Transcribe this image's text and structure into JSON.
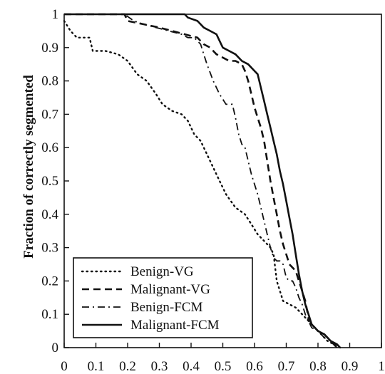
{
  "chart_data": {
    "type": "line",
    "title": "",
    "xlabel": "",
    "ylabel": "Fraction of correctly segmented",
    "xlim": [
      0,
      1
    ],
    "ylim": [
      0,
      1
    ],
    "x_ticks": [
      "0",
      "0.1",
      "0.2",
      "0.3",
      "0.4",
      "0.5",
      "0.6",
      "0.7",
      "0.8",
      "0.9",
      "1"
    ],
    "y_ticks": [
      "0",
      "0.1",
      "0.2",
      "0.3",
      "0.4",
      "0.5",
      "0.6",
      "0.7",
      "0.8",
      "0.9",
      "1"
    ],
    "grid": false,
    "legend_position": "bottom-left",
    "series": [
      {
        "name": "Benign-VG",
        "style": "dotted",
        "color": "#111111",
        "points": [
          [
            0.0,
            0.98
          ],
          [
            0.02,
            0.95
          ],
          [
            0.04,
            0.93
          ],
          [
            0.08,
            0.93
          ],
          [
            0.09,
            0.89
          ],
          [
            0.13,
            0.89
          ],
          [
            0.17,
            0.88
          ],
          [
            0.2,
            0.86
          ],
          [
            0.23,
            0.82
          ],
          [
            0.26,
            0.8
          ],
          [
            0.29,
            0.76
          ],
          [
            0.31,
            0.73
          ],
          [
            0.34,
            0.71
          ],
          [
            0.37,
            0.7
          ],
          [
            0.39,
            0.68
          ],
          [
            0.41,
            0.64
          ],
          [
            0.43,
            0.62
          ],
          [
            0.45,
            0.58
          ],
          [
            0.47,
            0.54
          ],
          [
            0.49,
            0.5
          ],
          [
            0.51,
            0.46
          ],
          [
            0.54,
            0.42
          ],
          [
            0.57,
            0.4
          ],
          [
            0.59,
            0.37
          ],
          [
            0.61,
            0.34
          ],
          [
            0.63,
            0.32
          ],
          [
            0.65,
            0.3
          ],
          [
            0.66,
            0.28
          ],
          [
            0.67,
            0.2
          ],
          [
            0.68,
            0.17
          ],
          [
            0.69,
            0.14
          ],
          [
            0.71,
            0.13
          ],
          [
            0.73,
            0.12
          ],
          [
            0.75,
            0.1
          ],
          [
            0.77,
            0.08
          ],
          [
            0.79,
            0.06
          ],
          [
            0.81,
            0.04
          ],
          [
            0.83,
            0.02
          ],
          [
            0.85,
            0.01
          ],
          [
            0.87,
            0.0
          ]
        ]
      },
      {
        "name": "Malignant-VG",
        "style": "dashed",
        "color": "#111111",
        "points": [
          [
            0.0,
            1.0
          ],
          [
            0.19,
            1.0
          ],
          [
            0.2,
            0.98
          ],
          [
            0.25,
            0.97
          ],
          [
            0.3,
            0.96
          ],
          [
            0.34,
            0.95
          ],
          [
            0.38,
            0.94
          ],
          [
            0.42,
            0.93
          ],
          [
            0.44,
            0.91
          ],
          [
            0.46,
            0.9
          ],
          [
            0.48,
            0.88
          ],
          [
            0.5,
            0.87
          ],
          [
            0.52,
            0.86
          ],
          [
            0.54,
            0.86
          ],
          [
            0.56,
            0.85
          ],
          [
            0.57,
            0.83
          ],
          [
            0.58,
            0.8
          ],
          [
            0.59,
            0.76
          ],
          [
            0.6,
            0.72
          ],
          [
            0.61,
            0.69
          ],
          [
            0.62,
            0.66
          ],
          [
            0.63,
            0.62
          ],
          [
            0.64,
            0.56
          ],
          [
            0.65,
            0.5
          ],
          [
            0.66,
            0.45
          ],
          [
            0.67,
            0.4
          ],
          [
            0.68,
            0.35
          ],
          [
            0.69,
            0.31
          ],
          [
            0.7,
            0.28
          ],
          [
            0.71,
            0.25
          ],
          [
            0.72,
            0.24
          ],
          [
            0.73,
            0.23
          ],
          [
            0.74,
            0.2
          ],
          [
            0.75,
            0.17
          ],
          [
            0.76,
            0.14
          ],
          [
            0.77,
            0.09
          ],
          [
            0.78,
            0.07
          ],
          [
            0.8,
            0.05
          ],
          [
            0.82,
            0.04
          ],
          [
            0.84,
            0.02
          ],
          [
            0.86,
            0.0
          ]
        ]
      },
      {
        "name": "Benign-FCM",
        "style": "dashdot",
        "color": "#111111",
        "points": [
          [
            0.0,
            1.0
          ],
          [
            0.19,
            1.0
          ],
          [
            0.22,
            0.98
          ],
          [
            0.25,
            0.97
          ],
          [
            0.29,
            0.96
          ],
          [
            0.33,
            0.95
          ],
          [
            0.37,
            0.94
          ],
          [
            0.39,
            0.93
          ],
          [
            0.41,
            0.93
          ],
          [
            0.43,
            0.91
          ],
          [
            0.44,
            0.88
          ],
          [
            0.45,
            0.85
          ],
          [
            0.47,
            0.8
          ],
          [
            0.49,
            0.76
          ],
          [
            0.51,
            0.73
          ],
          [
            0.53,
            0.73
          ],
          [
            0.54,
            0.69
          ],
          [
            0.55,
            0.64
          ],
          [
            0.56,
            0.61
          ],
          [
            0.57,
            0.6
          ],
          [
            0.58,
            0.56
          ],
          [
            0.59,
            0.52
          ],
          [
            0.6,
            0.49
          ],
          [
            0.61,
            0.46
          ],
          [
            0.62,
            0.42
          ],
          [
            0.63,
            0.38
          ],
          [
            0.64,
            0.34
          ],
          [
            0.65,
            0.3
          ],
          [
            0.66,
            0.27
          ],
          [
            0.67,
            0.26
          ],
          [
            0.68,
            0.26
          ],
          [
            0.69,
            0.25
          ],
          [
            0.7,
            0.21
          ],
          [
            0.71,
            0.2
          ],
          [
            0.72,
            0.2
          ],
          [
            0.73,
            0.18
          ],
          [
            0.74,
            0.15
          ],
          [
            0.75,
            0.13
          ],
          [
            0.76,
            0.1
          ],
          [
            0.78,
            0.06
          ],
          [
            0.8,
            0.05
          ],
          [
            0.82,
            0.03
          ],
          [
            0.84,
            0.02
          ],
          [
            0.86,
            0.0
          ]
        ]
      },
      {
        "name": "Malignant-FCM",
        "style": "solid",
        "color": "#111111",
        "points": [
          [
            0.0,
            1.0
          ],
          [
            0.38,
            1.0
          ],
          [
            0.39,
            0.99
          ],
          [
            0.42,
            0.98
          ],
          [
            0.44,
            0.96
          ],
          [
            0.46,
            0.95
          ],
          [
            0.48,
            0.94
          ],
          [
            0.49,
            0.92
          ],
          [
            0.5,
            0.9
          ],
          [
            0.52,
            0.89
          ],
          [
            0.54,
            0.88
          ],
          [
            0.56,
            0.86
          ],
          [
            0.58,
            0.85
          ],
          [
            0.6,
            0.83
          ],
          [
            0.61,
            0.82
          ],
          [
            0.62,
            0.78
          ],
          [
            0.63,
            0.74
          ],
          [
            0.64,
            0.7
          ],
          [
            0.65,
            0.66
          ],
          [
            0.66,
            0.62
          ],
          [
            0.67,
            0.58
          ],
          [
            0.68,
            0.53
          ],
          [
            0.69,
            0.49
          ],
          [
            0.7,
            0.44
          ],
          [
            0.71,
            0.39
          ],
          [
            0.72,
            0.34
          ],
          [
            0.73,
            0.28
          ],
          [
            0.74,
            0.22
          ],
          [
            0.75,
            0.17
          ],
          [
            0.76,
            0.13
          ],
          [
            0.77,
            0.1
          ],
          [
            0.78,
            0.07
          ],
          [
            0.8,
            0.05
          ],
          [
            0.82,
            0.04
          ],
          [
            0.84,
            0.02
          ],
          [
            0.86,
            0.01
          ],
          [
            0.87,
            0.0
          ]
        ]
      }
    ]
  }
}
